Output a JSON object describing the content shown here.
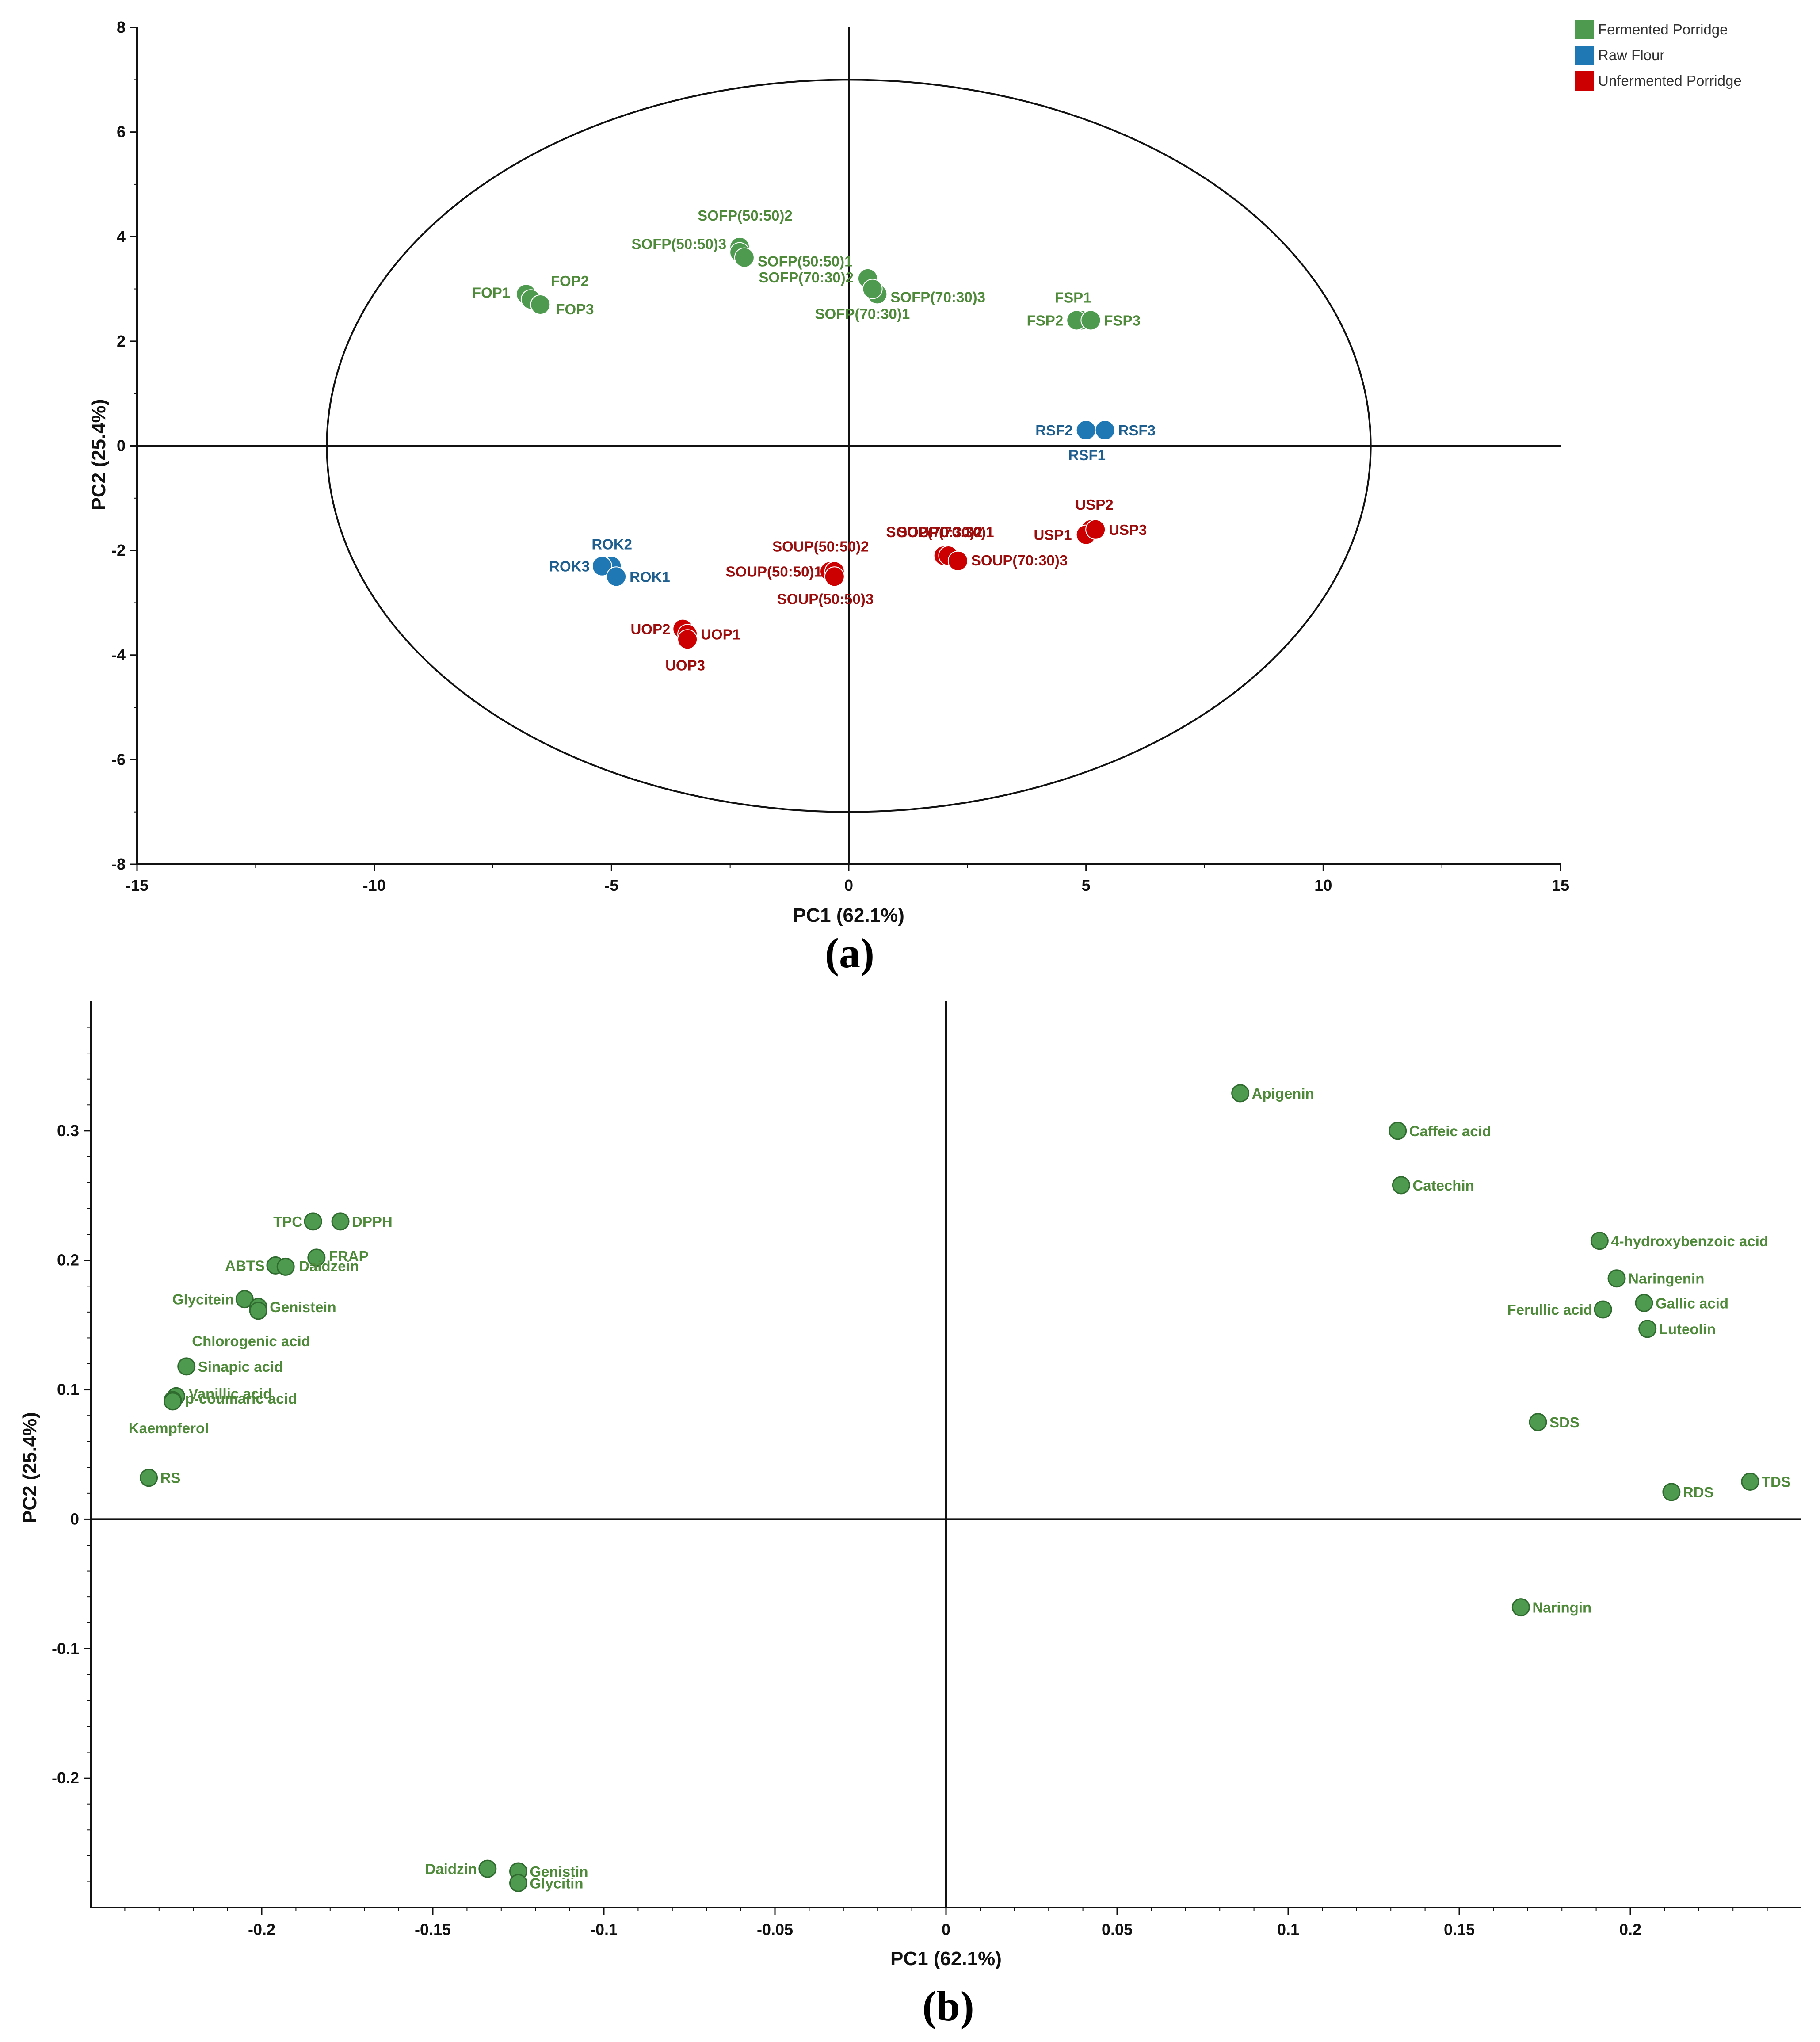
{
  "chart_data": [
    {
      "type": "scatter",
      "panel_label": "(a)",
      "title": "",
      "xlabel": "PC1 (62.1%)",
      "ylabel": "PC2 (25.4%)",
      "xlim": [
        -15,
        15
      ],
      "ylim": [
        -8,
        8
      ],
      "xticks": [
        -15,
        -10,
        -5,
        0,
        5,
        10,
        15
      ],
      "yticks": [
        -8,
        -6,
        -4,
        -2,
        0,
        2,
        4,
        6,
        8
      ],
      "ellipse": {
        "rx": 11,
        "ry": 7
      },
      "legend": [
        {
          "name": "Fermented Porridge",
          "color": "#4e9a4e"
        },
        {
          "name": "Raw Flour",
          "color": "#1f77b4"
        },
        {
          "name": "Unfermented Porridge",
          "color": "#cc0000"
        }
      ],
      "series": [
        {
          "name": "Fermented Porridge",
          "color": "#4e9a4e",
          "label_color": "#4e8a3a",
          "points": [
            {
              "label": "FOP1",
              "x": -6.8,
              "y": 2.9
            },
            {
              "label": "FOP2",
              "x": -6.7,
              "y": 2.8
            },
            {
              "label": "FOP3",
              "x": -6.5,
              "y": 2.7
            },
            {
              "label": "SOFP(50:50)2",
              "x": -2.3,
              "y": 3.8
            },
            {
              "label": "SOFP(50:50)3",
              "x": -2.3,
              "y": 3.7
            },
            {
              "label": "SOFP(50:50)1",
              "x": -2.2,
              "y": 3.6
            },
            {
              "label": "SOFP(70:30)2",
              "x": 0.4,
              "y": 3.2
            },
            {
              "label": "SOFP(70:30)3",
              "x": 0.6,
              "y": 2.9
            },
            {
              "label": "SOFP(70:30)1",
              "x": 0.5,
              "y": 3.0
            },
            {
              "label": "FSP1",
              "x": 4.9,
              "y": 2.4
            },
            {
              "label": "FSP2",
              "x": 4.8,
              "y": 2.4
            },
            {
              "label": "FSP3",
              "x": 5.1,
              "y": 2.4
            }
          ]
        },
        {
          "name": "Raw Flour",
          "color": "#1f77b4",
          "label_color": "#1f5f8f",
          "points": [
            {
              "label": "RSF1",
              "x": 5.0,
              "y": 0.3
            },
            {
              "label": "RSF2",
              "x": 5.0,
              "y": 0.3
            },
            {
              "label": "RSF3",
              "x": 5.4,
              "y": 0.3
            },
            {
              "label": "ROK2",
              "x": -5.0,
              "y": -2.3
            },
            {
              "label": "ROK3",
              "x": -5.2,
              "y": -2.3
            },
            {
              "label": "ROK1",
              "x": -4.9,
              "y": -2.5
            }
          ]
        },
        {
          "name": "Unfermented Porridge",
          "color": "#cc0000",
          "label_color": "#9b0d0d",
          "points": [
            {
              "label": "USP2",
              "x": 5.1,
              "y": -1.6
            },
            {
              "label": "USP1",
              "x": 5.0,
              "y": -1.7
            },
            {
              "label": "USP3",
              "x": 5.2,
              "y": -1.6
            },
            {
              "label": "SOUP(70:30)2",
              "x": 2.0,
              "y": -2.1
            },
            {
              "label": "SOUP(70:30)1",
              "x": 2.1,
              "y": -2.1
            },
            {
              "label": "SOUP(70:30)3",
              "x": 2.3,
              "y": -2.2
            },
            {
              "label": "SOUP(50:50)2",
              "x": -0.4,
              "y": -2.4
            },
            {
              "label": "SOUP(50:50)1",
              "x": -0.3,
              "y": -2.4
            },
            {
              "label": "SOUP(50:50)3",
              "x": -0.3,
              "y": -2.5
            },
            {
              "label": "UOP2",
              "x": -3.5,
              "y": -3.5
            },
            {
              "label": "UOP1",
              "x": -3.4,
              "y": -3.6
            },
            {
              "label": "UOP3",
              "x": -3.4,
              "y": -3.7
            }
          ]
        }
      ]
    },
    {
      "type": "scatter",
      "panel_label": "(b)",
      "title": "",
      "xlabel": "PC1 (62.1%)",
      "ylabel": "PC2 (25.4%)",
      "xlim": [
        -0.25,
        0.25
      ],
      "ylim": [
        -0.3,
        0.4
      ],
      "xticks": [
        -0.2,
        -0.15,
        -0.1,
        -0.05,
        0,
        0.05,
        0.1,
        0.15,
        0.2
      ],
      "xtick_labels": [
        "-0.2",
        "-0.15",
        "-0.1",
        "-0.05",
        "0",
        "0.05",
        "0.1",
        "0.15",
        "0.2"
      ],
      "yticks": [
        -0.2,
        -0.1,
        0,
        0.1,
        0.2,
        0.3
      ],
      "ytick_labels": [
        "-0.2",
        "-0.1",
        "0",
        "0.1",
        "0.2",
        "0.3"
      ],
      "color": "#4e9a4e",
      "label_color": "#4e8a3a",
      "points": [
        {
          "label": "Apigenin",
          "x": 0.086,
          "y": 0.329
        },
        {
          "label": "Caffeic acid",
          "x": 0.132,
          "y": 0.3
        },
        {
          "label": "Catechin",
          "x": 0.133,
          "y": 0.258
        },
        {
          "label": "4-hydroxybenzoic acid",
          "x": 0.191,
          "y": 0.215
        },
        {
          "label": "Naringenin",
          "x": 0.196,
          "y": 0.186
        },
        {
          "label": "Gallic acid",
          "x": 0.204,
          "y": 0.167
        },
        {
          "label": "Ferullic acid",
          "x": 0.192,
          "y": 0.162
        },
        {
          "label": "Luteolin",
          "x": 0.205,
          "y": 0.147
        },
        {
          "label": "SDS",
          "x": 0.173,
          "y": 0.075
        },
        {
          "label": "TDS",
          "x": 0.235,
          "y": 0.029
        },
        {
          "label": "RDS",
          "x": 0.212,
          "y": 0.021
        },
        {
          "label": "Naringin",
          "x": 0.168,
          "y": -0.068
        },
        {
          "label": "TPC",
          "x": -0.185,
          "y": 0.23
        },
        {
          "label": "DPPH",
          "x": -0.177,
          "y": 0.23
        },
        {
          "label": "FRAP",
          "x": -0.184,
          "y": 0.202
        },
        {
          "label": "ABTS",
          "x": -0.196,
          "y": 0.196
        },
        {
          "label": "Daidzein",
          "x": -0.193,
          "y": 0.195
        },
        {
          "label": "Glycitein",
          "x": -0.205,
          "y": 0.17
        },
        {
          "label": "Genistein",
          "x": -0.201,
          "y": 0.164
        },
        {
          "label": "Chlorogenic acid",
          "x": -0.201,
          "y": 0.161
        },
        {
          "label": "Sinapic acid",
          "x": -0.222,
          "y": 0.118
        },
        {
          "label": "Vanillic acid",
          "x": -0.225,
          "y": 0.095
        },
        {
          "label": "p-coumaric acid",
          "x": -0.226,
          "y": 0.092
        },
        {
          "label": "Kaempferol",
          "x": -0.226,
          "y": 0.091
        },
        {
          "label": "RS",
          "x": -0.233,
          "y": 0.032
        },
        {
          "label": "Daidzin",
          "x": -0.134,
          "y": -0.27
        },
        {
          "label": "Genistin",
          "x": -0.125,
          "y": -0.272
        },
        {
          "label": "Glycitin",
          "x": -0.125,
          "y": -0.281
        }
      ]
    }
  ]
}
